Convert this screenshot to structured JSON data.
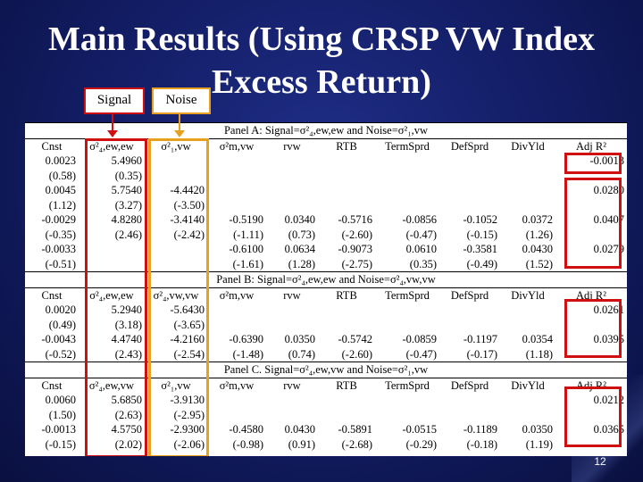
{
  "slide": {
    "title_line1": "Main Results (Using CRSP VW Index",
    "title_line2": "Excess Return)",
    "signal_label": "Signal",
    "noise_label": "Noise",
    "page_number": "12",
    "colors": {
      "signal_box": "#d01010",
      "noise_box": "#e8a020",
      "adj_box": "#d01010"
    }
  },
  "table": {
    "headers": [
      "Cnst",
      "σ²₄,ew,ew",
      "σ²₁,vw",
      "σ²m,vw",
      "rvw",
      "RTB",
      "TermSprd",
      "DefSprd",
      "DivYld",
      "Adj R²"
    ],
    "headers_b": [
      "Cnst",
      "σ²₄,ew,ew",
      "σ²₄,vw,vw",
      "σ²m,vw",
      "rvw",
      "RTB",
      "TermSprd",
      "DefSprd",
      "DivYld",
      "Adj R²"
    ],
    "headers_c": [
      "Cnst",
      "σ²₄,ew,vw",
      "σ²₁,vw",
      "σ²m,vw",
      "rvw",
      "RTB",
      "TermSprd",
      "DefSprd",
      "DivYld",
      "Adj R²"
    ],
    "panel_a": "Panel A: Signal=σ²₄,ew,ew and Noise=σ²₁,vw",
    "panel_b": "Panel B: Signal=σ²₄,ew,ew and Noise=σ²₄,vw,vw",
    "panel_c": "Panel C. Signal=σ²₄,ew,vw and Noise=σ²₁,vw",
    "rows_a": [
      [
        "0.0023",
        "5.4960",
        "",
        "",
        "",
        "",
        "",
        "",
        "",
        "-0.0013"
      ],
      [
        "(0.58)",
        "(0.35)",
        "",
        "",
        "",
        "",
        "",
        "",
        "",
        ""
      ],
      [
        "0.0045",
        "5.7540",
        "-4.4420",
        "",
        "",
        "",
        "",
        "",
        "",
        "0.0280"
      ],
      [
        "(1.12)",
        "(3.27)",
        "(-3.50)",
        "",
        "",
        "",
        "",
        "",
        "",
        ""
      ],
      [
        "-0.0029",
        "4.8280",
        "-3.4140",
        "-0.5190",
        "0.0340",
        "-0.5716",
        "-0.0856",
        "-0.1052",
        "0.0372",
        "0.0407"
      ],
      [
        "(-0.35)",
        "(2.46)",
        "(-2.42)",
        "(-1.11)",
        "(0.73)",
        "(-2.60)",
        "(-0.47)",
        "(-0.15)",
        "(1.26)",
        ""
      ],
      [
        "-0.0033",
        "",
        "",
        "-0.6100",
        "0.0634",
        "-0.9073",
        "0.0610",
        "-0.3581",
        "0.0430",
        "0.0279"
      ],
      [
        "(-0.51)",
        "",
        "",
        "(-1.61)",
        "(1.28)",
        "(-2.75)",
        "(0.35)",
        "(-0.49)",
        "(1.52)",
        ""
      ]
    ],
    "rows_b": [
      [
        "0.0020",
        "5.2940",
        "-5.6430",
        "",
        "",
        "",
        "",
        "",
        "",
        "0.0261"
      ],
      [
        "(0.49)",
        "(3.18)",
        "(-3.65)",
        "",
        "",
        "",
        "",
        "",
        "",
        ""
      ],
      [
        "-0.0043",
        "4.4740",
        "-4.2160",
        "-0.6390",
        "0.0350",
        "-0.5742",
        "-0.0859",
        "-0.1197",
        "0.0354",
        "0.0395"
      ],
      [
        "(-0.52)",
        "(2.43)",
        "(-2.54)",
        "(-1.48)",
        "(0.74)",
        "(-2.60)",
        "(-0.47)",
        "(-0.17)",
        "(1.18)",
        ""
      ]
    ],
    "rows_c": [
      [
        "0.0060",
        "5.6850",
        "-3.9130",
        "",
        "",
        "",
        "",
        "",
        "",
        "0.0212"
      ],
      [
        "(1.50)",
        "(2.63)",
        "(-2.95)",
        "",
        "",
        "",
        "",
        "",
        "",
        ""
      ],
      [
        "-0.0013",
        "4.5750",
        "-2.9300",
        "-0.4580",
        "0.0430",
        "-0.5891",
        "-0.0515",
        "-0.1189",
        "0.0350",
        "0.0365"
      ],
      [
        "(-0.15)",
        "(2.02)",
        "(-2.06)",
        "(-0.98)",
        "(0.91)",
        "(-2.68)",
        "(-0.29)",
        "(-0.18)",
        "(1.19)",
        ""
      ]
    ]
  }
}
